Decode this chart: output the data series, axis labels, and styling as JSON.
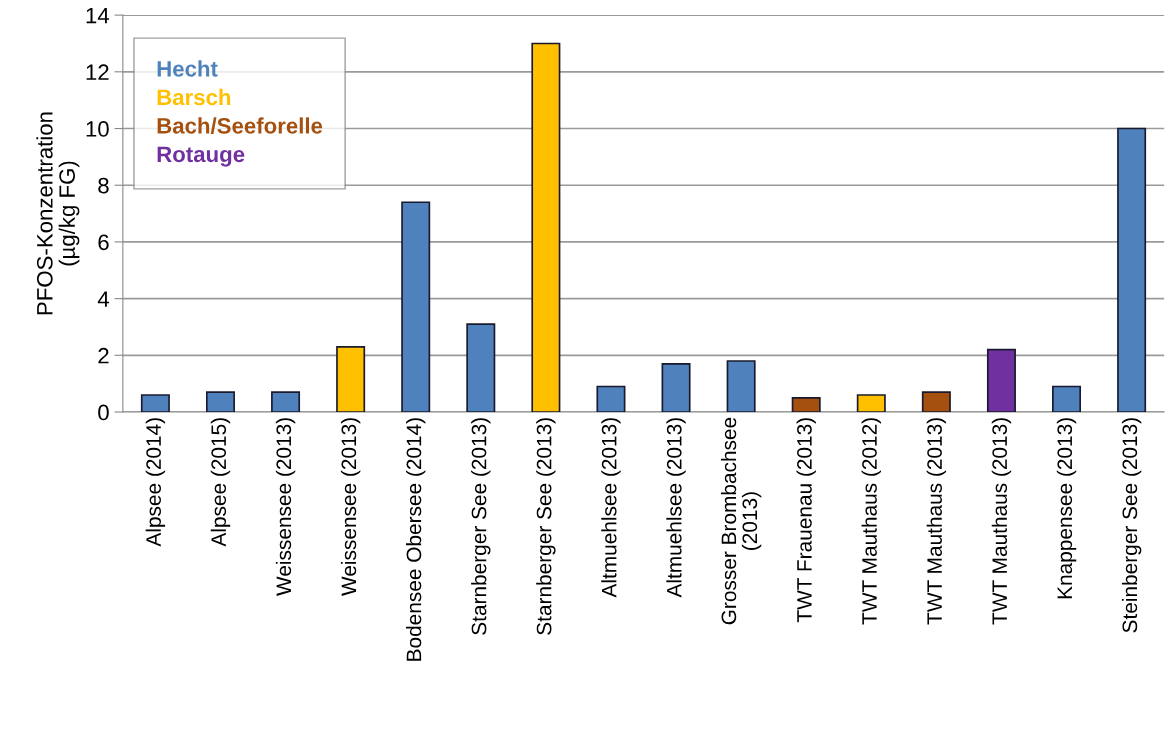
{
  "chart_data": {
    "type": "bar",
    "ylabel": "PFOS-Konzentration\n(µg/kg FG)",
    "categories": [
      "Alpsee (2014)",
      "Alpsee (2015)",
      "Weissensee (2013)",
      "Weissensee (2013)",
      "Bodensee Obersee (2014)",
      "Starnberger See (2013)",
      "Starnberger See (2013)",
      "Altmuehlsee (2013)",
      "Altmuehlsee (2013)",
      "Grosser Brombachsee\n(2013)",
      "TWT Frauenau (2013)",
      "TWT Mauthaus (2012)",
      "TWT Mauthaus (2013)",
      "TWT Mauthaus (2013)",
      "Knappensee (2013)",
      "Steinberger See (2013)"
    ],
    "series": [
      {
        "name": "Hecht",
        "color": "#4f81bd",
        "values": [
          0.6,
          0.7,
          0.7,
          null,
          7.4,
          3.1,
          null,
          0.9,
          1.7,
          1.8,
          null,
          null,
          null,
          null,
          0.9,
          10
        ]
      },
      {
        "name": "Barsch",
        "color": "#ffc000",
        "values": [
          null,
          null,
          null,
          2.3,
          null,
          null,
          13,
          null,
          null,
          null,
          null,
          0.6,
          null,
          null,
          null,
          null
        ]
      },
      {
        "name": "Bach/Seeforelle",
        "color": "#a5500f",
        "values": [
          null,
          null,
          null,
          null,
          null,
          null,
          null,
          null,
          null,
          null,
          0.5,
          null,
          0.7,
          null,
          null,
          null
        ]
      },
      {
        "name": "Rotauge",
        "color": "#7030a0",
        "values": [
          null,
          null,
          null,
          null,
          null,
          null,
          null,
          null,
          null,
          null,
          null,
          null,
          null,
          2.2,
          null,
          null
        ]
      }
    ],
    "ylim": [
      0,
      14
    ],
    "yticks": [
      0,
      2,
      4,
      6,
      8,
      10,
      12,
      14
    ],
    "grid": "y",
    "legend": "top left"
  }
}
